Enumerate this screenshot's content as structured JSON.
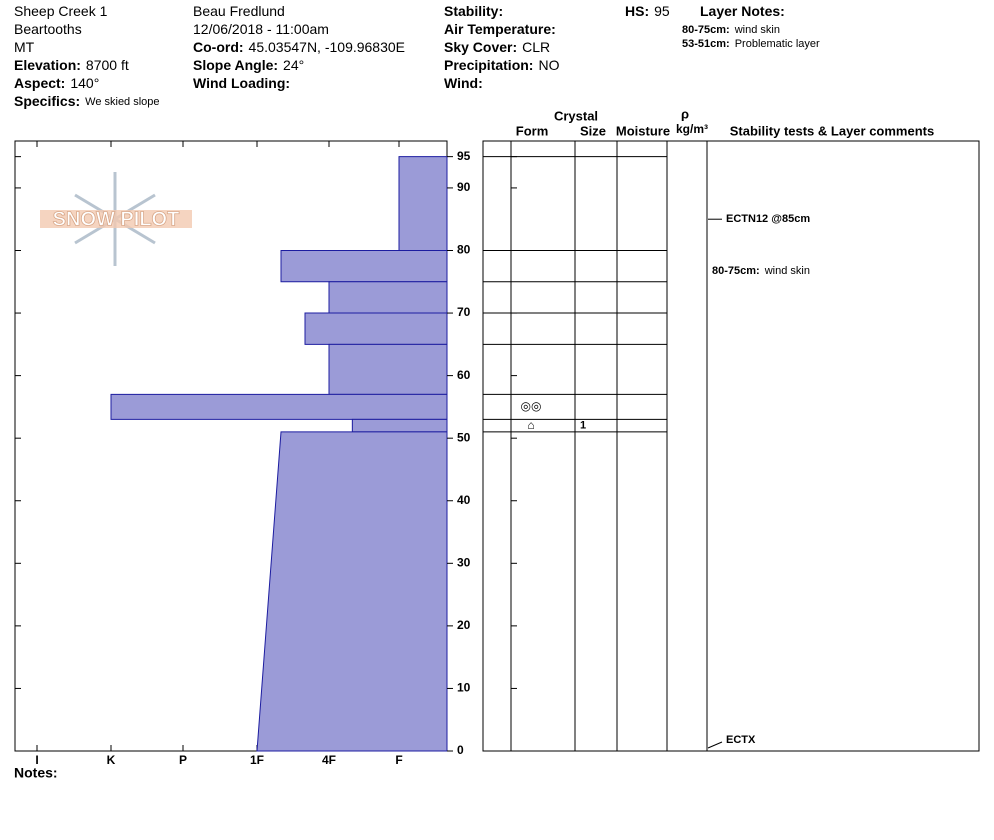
{
  "header": {
    "items": [
      {
        "value": "Sheep Creek 1"
      },
      {
        "value": "Beartooths"
      },
      {
        "value": "MT"
      },
      {
        "label": "Elevation:",
        "value": "8700 ft"
      },
      {
        "label": "Aspect:",
        "value": "140°"
      },
      {
        "label": "Specifics:",
        "value": "We skied slope"
      },
      {
        "value": "Beau  Fredlund"
      },
      {
        "value": "12/06/2018 - 11:00am"
      },
      {
        "label": "Co-ord:",
        "value": "45.03547N, -109.96830E"
      },
      {
        "label": "Slope Angle:",
        "value": "24°"
      },
      {
        "label": "Wind Loading:"
      },
      {
        "label": "Stability:"
      },
      {
        "label": "Air Temperature:"
      },
      {
        "label": "Sky Cover:",
        "value": "CLR"
      },
      {
        "label": "Precipitation:",
        "value": "NO"
      },
      {
        "label": "Wind:"
      },
      {
        "label": "HS:",
        "value": "95"
      },
      {
        "label": "Layer Notes:"
      }
    ],
    "layer_notes": [
      {
        "label": "80-75cm:",
        "value": "wind skin"
      },
      {
        "label": "53-51cm:",
        "value": "Problematic layer"
      }
    ]
  },
  "logo": "SNOW PILOT",
  "notes_label": "Notes:",
  "table_headers": {
    "crystal": "Crystal",
    "form": "Form",
    "size": "Size",
    "moisture": "Moisture",
    "rho": "ρ",
    "density_unit": "kg/m³",
    "comments": "Stability tests & Layer comments"
  },
  "chart_data": {
    "type": "hardness-profile",
    "x_categories": [
      "I",
      "K",
      "P",
      "1F",
      "4F",
      "F"
    ],
    "ylim": [
      0,
      97.5
    ],
    "yticks": [
      0,
      10,
      20,
      30,
      40,
      50,
      60,
      70,
      80,
      90,
      95
    ],
    "color": "#9b9bd7",
    "layers": [
      {
        "top": 95,
        "bottom": 80,
        "hardness": "F"
      },
      {
        "top": 80,
        "bottom": 75,
        "hardness": "1F-"
      },
      {
        "top": 75,
        "bottom": 70,
        "hardness": "4F"
      },
      {
        "top": 70,
        "bottom": 65,
        "hardness": "4F+"
      },
      {
        "top": 65,
        "bottom": 57,
        "hardness": "4F"
      },
      {
        "top": 57,
        "bottom": 53,
        "hardness": "K"
      },
      {
        "top": 53,
        "bottom": 51,
        "hardness": "4F-"
      },
      {
        "top": 51,
        "bottom": 0,
        "hardness": "1F-",
        "hardness_bottom": "1F"
      }
    ],
    "grains": [
      {
        "top": 57,
        "bottom": 53,
        "form": "◎◎"
      },
      {
        "top": 53,
        "bottom": 51,
        "form": "⌂",
        "size": "1"
      }
    ],
    "tests": [
      {
        "depth": 85,
        "text": "ECTN12 @85cm"
      },
      {
        "depth": 0,
        "text": "ECTX"
      }
    ],
    "comments": [
      {
        "label": "80-75cm:",
        "value": "wind skin"
      }
    ]
  }
}
